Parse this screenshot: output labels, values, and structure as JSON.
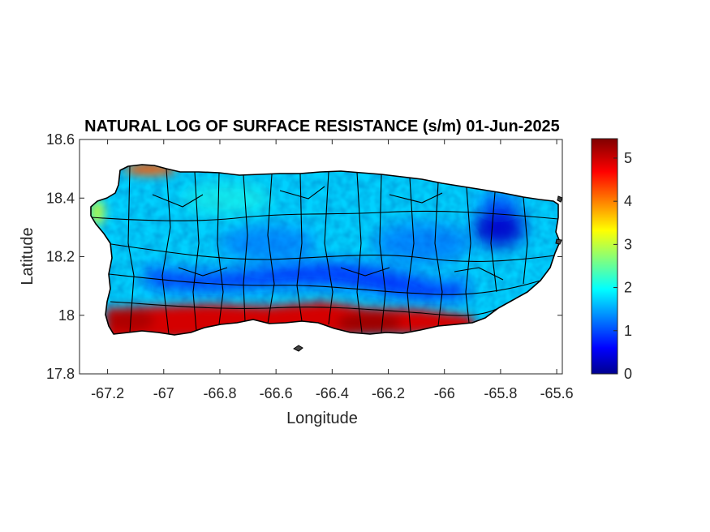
{
  "chart_data": {
    "type": "heatmap",
    "title": "NATURAL LOG OF SURFACE RESISTANCE (s/m) 01-Jun-2025",
    "xlabel": "Longitude",
    "ylabel": "Latitude",
    "xlim": [
      -67.3,
      -65.58
    ],
    "ylim": [
      17.8,
      18.6
    ],
    "xticks": [
      -67.2,
      -67,
      -66.8,
      -66.6,
      -66.4,
      -66.2,
      -66,
      -65.8,
      -65.6
    ],
    "xtick_labels": [
      "-67.2",
      "-67",
      "-66.8",
      "-66.6",
      "-66.4",
      "-66.2",
      "-66",
      "-65.8",
      "-65.6"
    ],
    "yticks": [
      17.8,
      18,
      18.2,
      18.4,
      18.6
    ],
    "ytick_labels": [
      "17.8",
      "18",
      "18.2",
      "18.4",
      "18.6"
    ],
    "colorbar": {
      "colormap": "jet",
      "range": [
        0,
        5.45
      ],
      "ticks": [
        0,
        1,
        2,
        3,
        4,
        5
      ],
      "tick_labels": [
        "0",
        "1",
        "2",
        "3",
        "4",
        "5"
      ]
    },
    "regions": [
      {
        "name": "island-interior",
        "value": 1.8
      },
      {
        "name": "central-mountain-ridge",
        "value": 0.8
      },
      {
        "name": "el-yunque-northeast",
        "value": 0.4
      },
      {
        "name": "south-coast",
        "value": 5.0
      },
      {
        "name": "southwest-coast",
        "value": 5.2
      },
      {
        "name": "northwest-coast",
        "value": 4.3
      },
      {
        "name": "west-coast",
        "value": 3.0
      }
    ]
  }
}
